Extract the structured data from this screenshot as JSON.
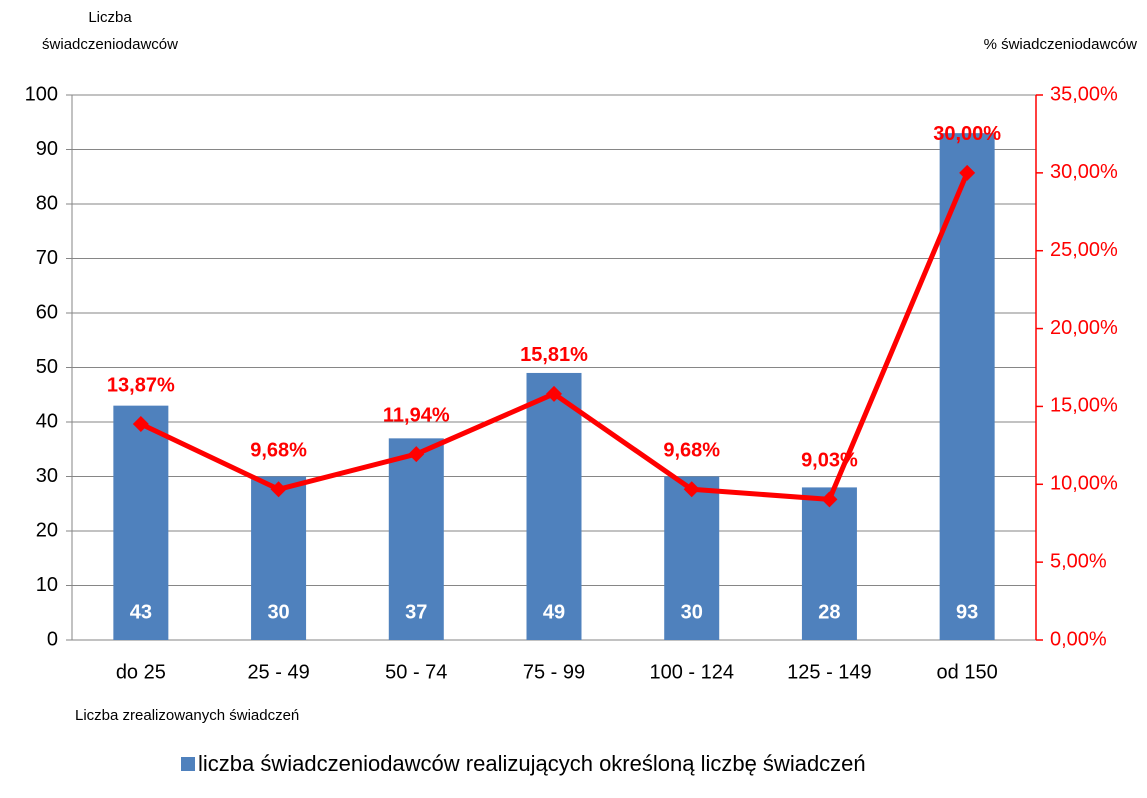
{
  "chart_data": {
    "type": "bar_line",
    "y_label": [
      "Liczba",
      "świadczeniodawców"
    ],
    "y2_label": "% świadczeniodawców",
    "x_label": "Liczba  zrealizowanych świadczeń",
    "categories": [
      "do 25",
      "25 - 49",
      "50 - 74",
      "75 - 99",
      "100 - 124",
      "125 - 149",
      "od 150"
    ],
    "series": [
      {
        "name": "liczba świadczeniodawców realizujących określoną liczbę świadczeń",
        "type": "bar",
        "color": "#4f81bd",
        "values": [
          43,
          30,
          37,
          49,
          30,
          28,
          93
        ]
      },
      {
        "type": "line",
        "axis": "y2",
        "color": "#ff0000",
        "values": [
          13.87,
          9.68,
          11.94,
          15.81,
          9.68,
          9.03,
          30.0
        ],
        "value_labels": [
          "13,87%",
          "9,68%",
          "11,94%",
          "15,81%",
          "9,68%",
          "9,03%",
          "30,00%"
        ]
      }
    ],
    "ylim": [
      0,
      100
    ],
    "yticks": [
      0,
      10,
      20,
      30,
      40,
      50,
      60,
      70,
      80,
      90,
      100
    ],
    "y2lim": [
      0,
      35
    ],
    "y2ticks": [
      {
        "value": 0,
        "label": "0,00%"
      },
      {
        "value": 5,
        "label": "5,00%"
      },
      {
        "value": 10,
        "label": "10,00%"
      },
      {
        "value": 15,
        "label": "15,00%"
      },
      {
        "value": 20,
        "label": "20,00%"
      },
      {
        "value": 25,
        "label": "25,00%"
      },
      {
        "value": 30,
        "label": "30,00%"
      },
      {
        "value": 35,
        "label": "35,00%"
      }
    ],
    "grid": true,
    "legend": "bottom"
  }
}
